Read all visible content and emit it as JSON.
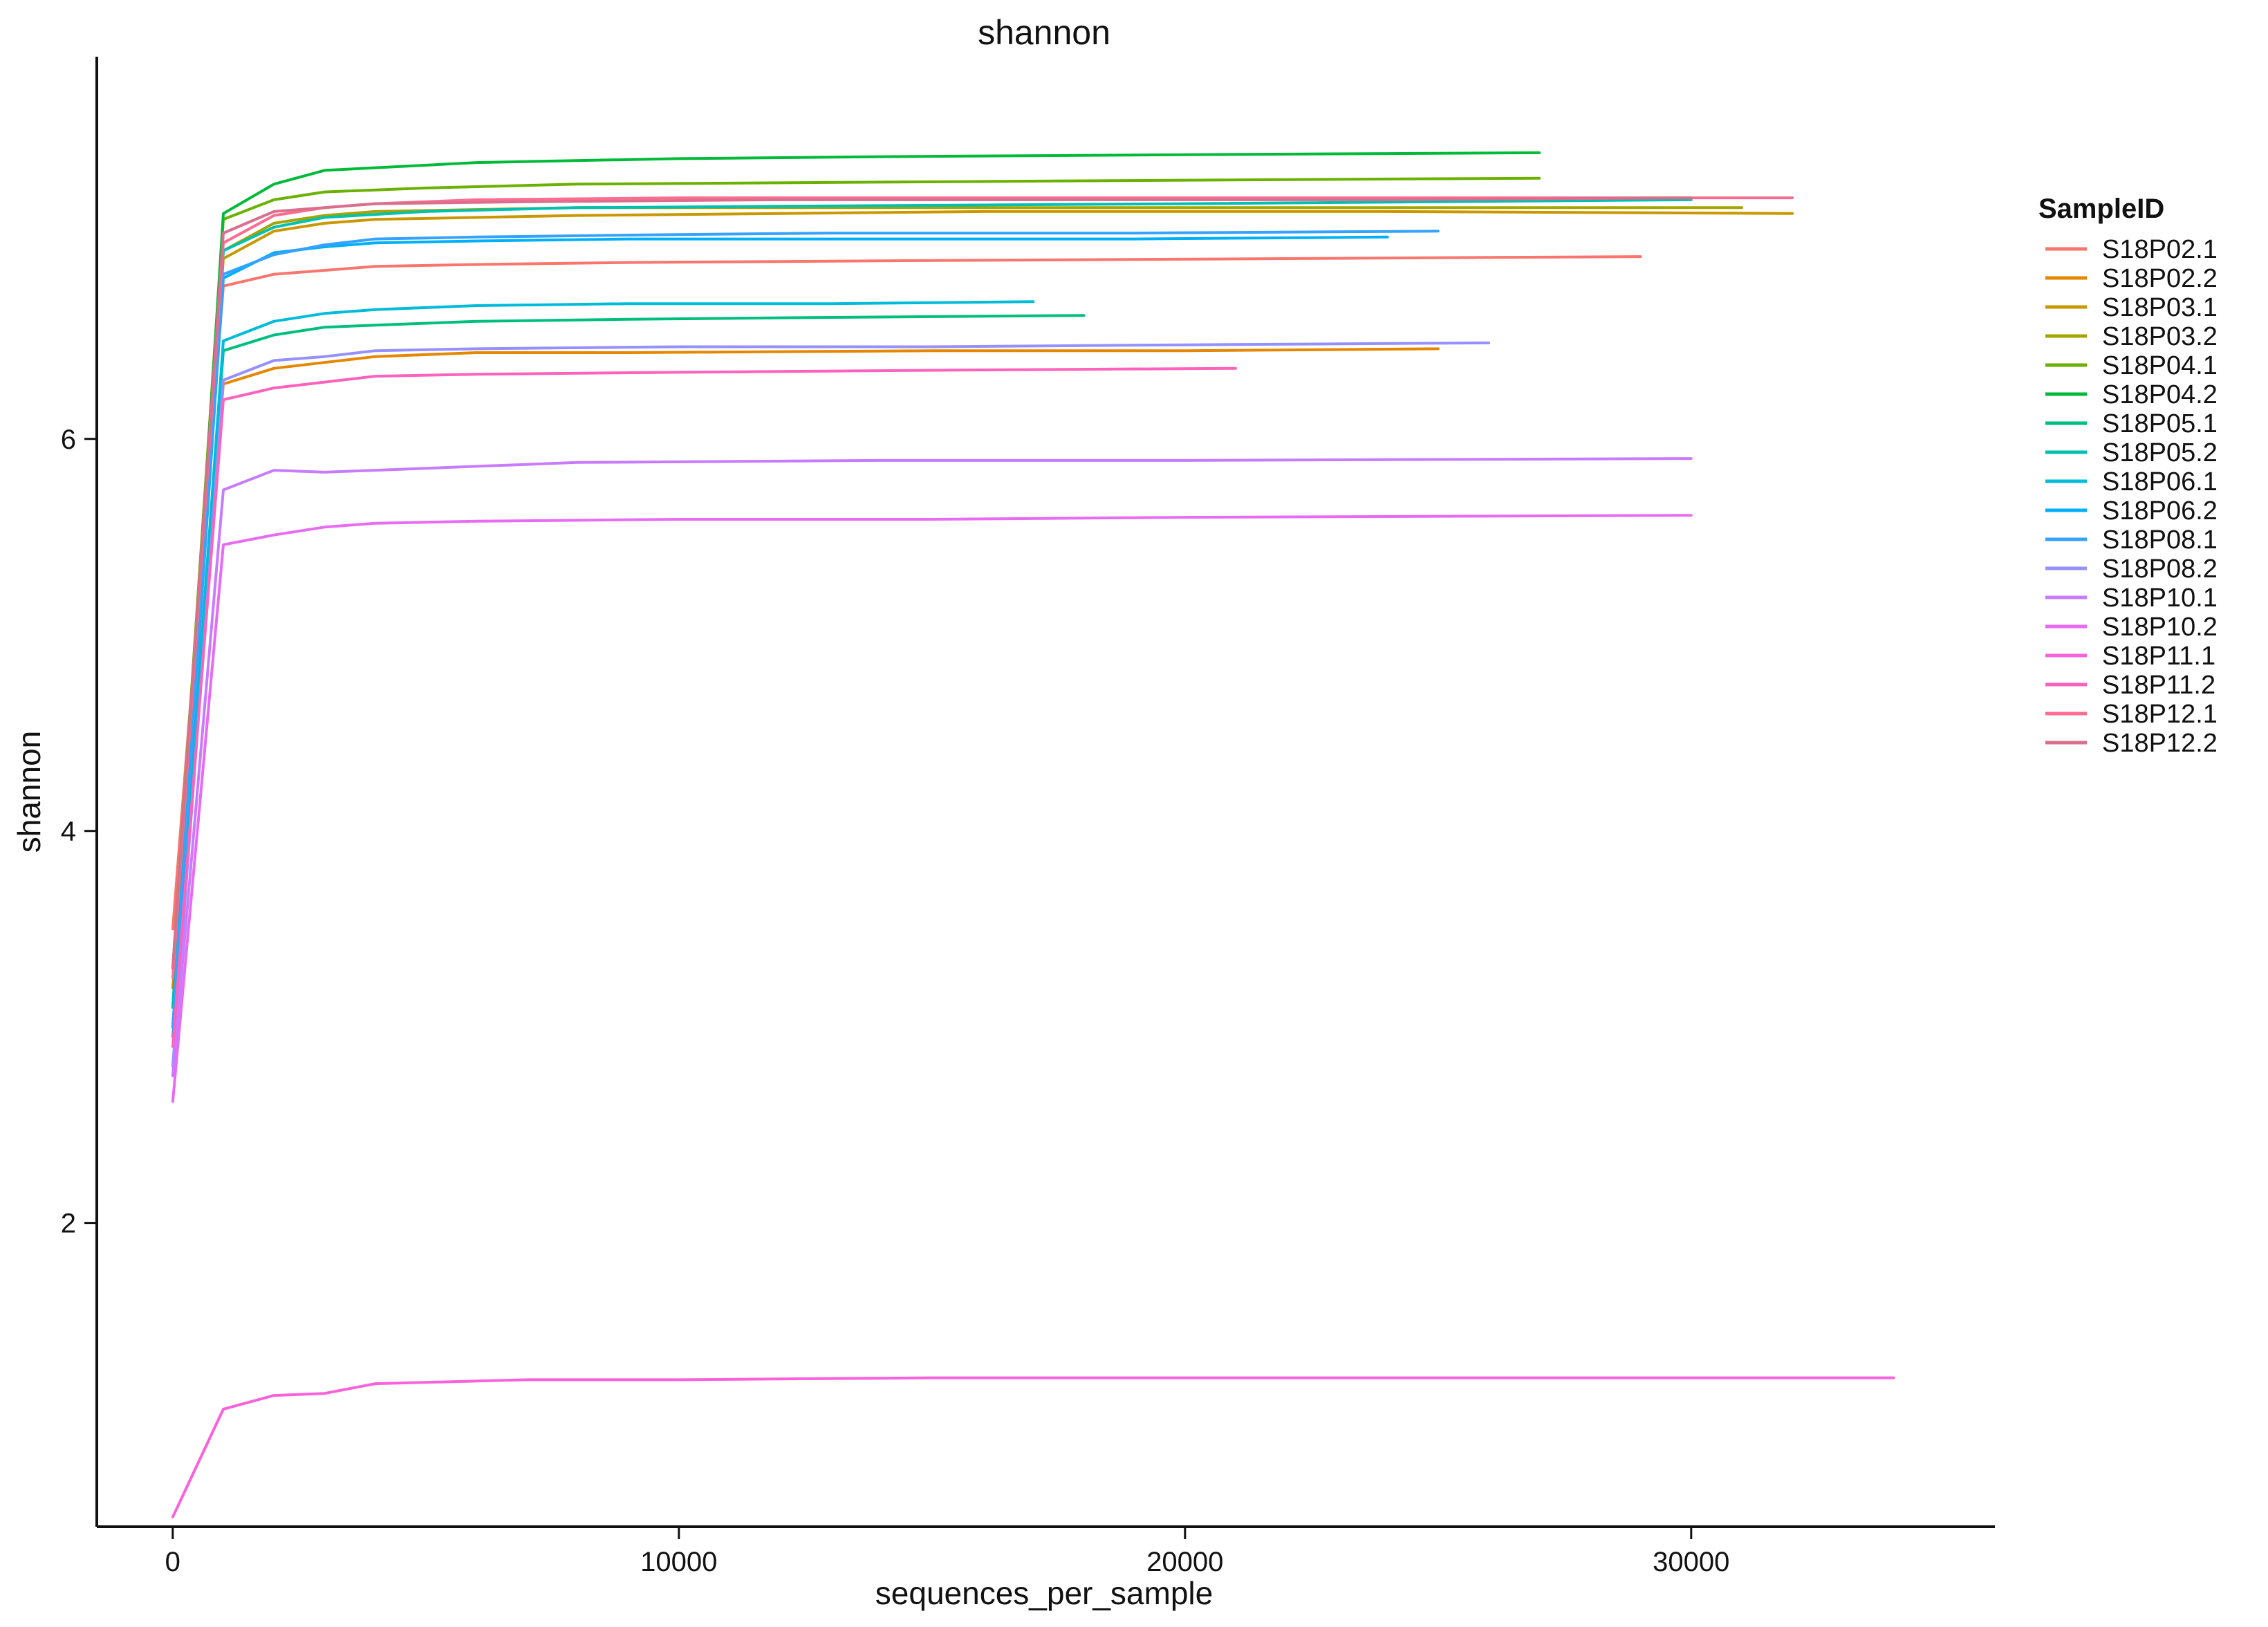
{
  "chart_data": {
    "type": "line",
    "title": "shannon",
    "xlabel": "sequences_per_sample",
    "ylabel": "shannon",
    "xlim": [
      -1500,
      36000
    ],
    "ylim": [
      0.45,
      7.95
    ],
    "xticks": [
      0,
      10000,
      20000,
      30000
    ],
    "xtick_labels": [
      "0",
      "10000",
      "20000",
      "30000"
    ],
    "yticks": [
      2,
      4,
      6
    ],
    "ytick_labels": [
      "2",
      "4",
      "6"
    ],
    "grid": false,
    "legend": {
      "title": "SampleID",
      "position": "right"
    },
    "series": [
      {
        "name": "S18P02.1",
        "color": "#F8766D",
        "x": [
          1,
          1000,
          2000,
          3000,
          4000,
          6000,
          9000,
          15000,
          22000,
          29000
        ],
        "y": [
          3.5,
          6.78,
          6.84,
          6.86,
          6.88,
          6.89,
          6.9,
          6.91,
          6.92,
          6.93
        ]
      },
      {
        "name": "S18P02.2",
        "color": "#E58700",
        "x": [
          1,
          1000,
          2000,
          3000,
          4000,
          6000,
          9000,
          15000,
          20000,
          25000
        ],
        "y": [
          3.2,
          6.28,
          6.36,
          6.39,
          6.42,
          6.44,
          6.44,
          6.45,
          6.45,
          6.46
        ]
      },
      {
        "name": "S18P03.1",
        "color": "#C99800",
        "x": [
          1,
          1000,
          2000,
          3000,
          4000,
          8000,
          16000,
          24000,
          32000
        ],
        "y": [
          3.3,
          6.92,
          7.06,
          7.1,
          7.12,
          7.14,
          7.16,
          7.16,
          7.15
        ]
      },
      {
        "name": "S18P03.2",
        "color": "#A3A500",
        "x": [
          1,
          1000,
          2000,
          3000,
          4000,
          8000,
          16000,
          24000,
          31000
        ],
        "y": [
          3.1,
          6.96,
          7.1,
          7.14,
          7.16,
          7.18,
          7.18,
          7.18,
          7.18
        ]
      },
      {
        "name": "S18P04.1",
        "color": "#6BB100",
        "x": [
          1,
          1000,
          2000,
          3000,
          5000,
          8000,
          14000,
          20000,
          27000
        ],
        "y": [
          3.3,
          7.12,
          7.22,
          7.26,
          7.28,
          7.3,
          7.31,
          7.32,
          7.33
        ]
      },
      {
        "name": "S18P04.2",
        "color": "#00BA38",
        "x": [
          1,
          1000,
          2000,
          3000,
          6000,
          10000,
          14000,
          20000,
          27000
        ],
        "y": [
          3.1,
          7.15,
          7.3,
          7.37,
          7.41,
          7.43,
          7.44,
          7.45,
          7.46
        ]
      },
      {
        "name": "S18P05.1",
        "color": "#00BF7D",
        "x": [
          1,
          1000,
          2000,
          3000,
          4000,
          6000,
          9000,
          13000,
          18000
        ],
        "y": [
          3.0,
          6.45,
          6.53,
          6.57,
          6.58,
          6.6,
          6.61,
          6.62,
          6.63
        ]
      },
      {
        "name": "S18P05.2",
        "color": "#00C0AF",
        "x": [
          1,
          1000,
          2000,
          3000,
          5000,
          8000,
          14000,
          20000,
          30000
        ],
        "y": [
          3.1,
          6.96,
          7.08,
          7.13,
          7.16,
          7.18,
          7.19,
          7.2,
          7.22
        ]
      },
      {
        "name": "S18P06.1",
        "color": "#00BCD8",
        "x": [
          1,
          1000,
          2000,
          3000,
          4000,
          6000,
          9000,
          13000,
          17000
        ],
        "y": [
          2.95,
          6.5,
          6.6,
          6.64,
          6.66,
          6.68,
          6.69,
          6.69,
          6.7
        ]
      },
      {
        "name": "S18P06.2",
        "color": "#00B0F6",
        "x": [
          1,
          1000,
          2000,
          3000,
          4000,
          6000,
          9000,
          14000,
          19000,
          24000
        ],
        "y": [
          3.0,
          6.82,
          6.95,
          6.98,
          7.0,
          7.01,
          7.02,
          7.02,
          7.02,
          7.03
        ]
      },
      {
        "name": "S18P08.1",
        "color": "#35A2FF",
        "x": [
          1,
          1000,
          2000,
          3000,
          4000,
          6000,
          9000,
          13000,
          19000,
          25000
        ],
        "y": [
          3.0,
          6.84,
          6.94,
          6.99,
          7.02,
          7.03,
          7.04,
          7.05,
          7.05,
          7.06
        ]
      },
      {
        "name": "S18P08.2",
        "color": "#9590FF",
        "x": [
          1,
          1000,
          2000,
          3000,
          4000,
          6000,
          10000,
          15000,
          20000,
          26000
        ],
        "y": [
          2.8,
          6.3,
          6.4,
          6.42,
          6.45,
          6.46,
          6.47,
          6.47,
          6.48,
          6.49
        ]
      },
      {
        "name": "S18P10.1",
        "color": "#C77CFF",
        "x": [
          1,
          1000,
          2000,
          3000,
          4000,
          6000,
          8000,
          14000,
          20000,
          30000
        ],
        "y": [
          2.75,
          5.74,
          5.84,
          5.83,
          5.84,
          5.86,
          5.88,
          5.89,
          5.89,
          5.9
        ]
      },
      {
        "name": "S18P10.2",
        "color": "#E76BF3",
        "x": [
          1,
          1000,
          2000,
          3000,
          4000,
          6000,
          10000,
          15000,
          20000,
          30000
        ],
        "y": [
          2.62,
          5.46,
          5.51,
          5.55,
          5.57,
          5.58,
          5.59,
          5.59,
          5.6,
          5.61
        ]
      },
      {
        "name": "S18P11.1",
        "color": "#FA62DB",
        "x": [
          1,
          1000,
          2000,
          3000,
          4000,
          7000,
          10000,
          15000,
          20000,
          27000,
          34000
        ],
        "y": [
          0.5,
          1.05,
          1.12,
          1.13,
          1.18,
          1.2,
          1.2,
          1.21,
          1.21,
          1.21,
          1.21
        ]
      },
      {
        "name": "S18P11.2",
        "color": "#FF62BC",
        "x": [
          1,
          1000,
          2000,
          3000,
          4000,
          6000,
          10000,
          15000,
          21000
        ],
        "y": [
          2.9,
          6.2,
          6.26,
          6.29,
          6.32,
          6.33,
          6.34,
          6.35,
          6.36
        ]
      },
      {
        "name": "S18P12.1",
        "color": "#FF6C91",
        "x": [
          1,
          1000,
          2000,
          3000,
          4000,
          6000,
          10000,
          16000,
          24000,
          32000
        ],
        "y": [
          3.25,
          7.0,
          7.14,
          7.18,
          7.2,
          7.22,
          7.23,
          7.23,
          7.23,
          7.23
        ]
      },
      {
        "name": "S18P12.2",
        "color": "#D96F8D",
        "x": [
          1,
          1000,
          2000,
          3000,
          4000,
          7000,
          12000,
          18000,
          24000,
          30000
        ],
        "y": [
          3.3,
          7.05,
          7.16,
          7.18,
          7.2,
          7.21,
          7.22,
          7.22,
          7.22,
          7.23
        ]
      }
    ]
  }
}
